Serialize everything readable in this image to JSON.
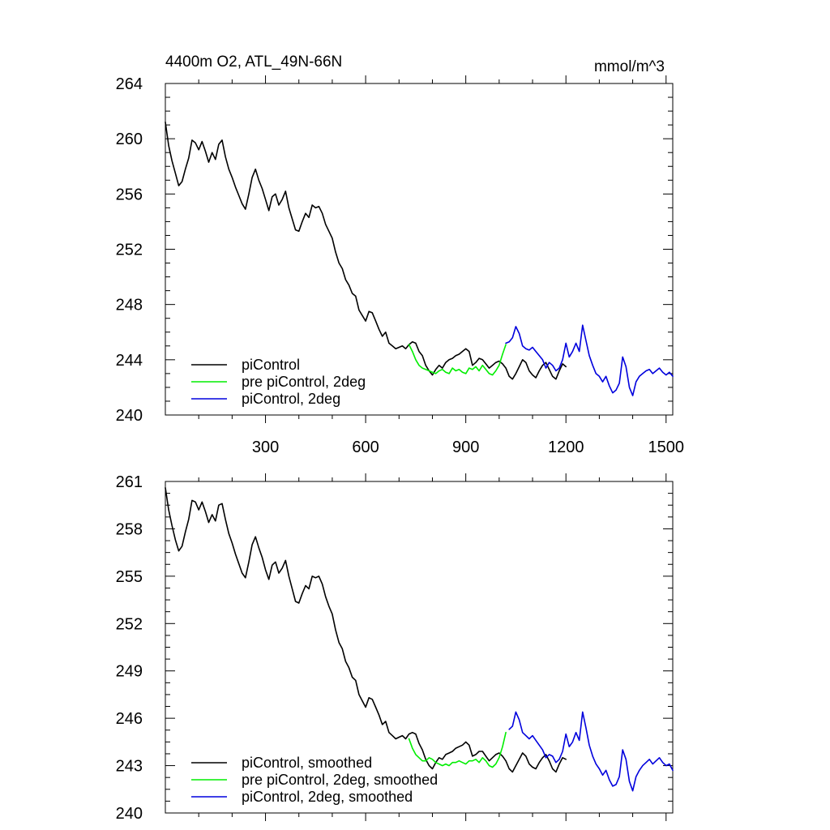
{
  "chart_data": [
    {
      "type": "line",
      "title_left": "4400m O2, ATL_49N-66N",
      "title_right": "mmol/m^3",
      "xlabel": "",
      "ylabel": "",
      "xlim": [
        0,
        1520
      ],
      "ylim": [
        240,
        264
      ],
      "x_ticks": [
        300,
        600,
        900,
        1200,
        1500
      ],
      "y_ticks": [
        240,
        244,
        248,
        252,
        256,
        260,
        264
      ],
      "show_x_tick_labels": true,
      "grid": false,
      "legend_position": "bottom-left",
      "series": [
        {
          "name": "piControl",
          "color": "#000000",
          "x": [
            0,
            10,
            20,
            30,
            40,
            50,
            60,
            70,
            80,
            90,
            100,
            110,
            120,
            130,
            140,
            150,
            160,
            170,
            180,
            190,
            200,
            210,
            220,
            230,
            240,
            250,
            260,
            270,
            280,
            290,
            300,
            310,
            320,
            330,
            340,
            350,
            360,
            370,
            380,
            390,
            400,
            410,
            420,
            430,
            440,
            450,
            460,
            470,
            480,
            490,
            500,
            510,
            520,
            530,
            540,
            550,
            560,
            570,
            580,
            590,
            600,
            610,
            620,
            630,
            640,
            650,
            660,
            670,
            680,
            690,
            700,
            710,
            720,
            730,
            740,
            750,
            760,
            770,
            780,
            790,
            800,
            810,
            820,
            830,
            840,
            850,
            860,
            870,
            880,
            890,
            900,
            910,
            920,
            930,
            940,
            950,
            960,
            970,
            980,
            990,
            1000,
            1010,
            1020,
            1030,
            1040,
            1050,
            1060,
            1070,
            1080,
            1090,
            1100,
            1110,
            1120,
            1130,
            1140,
            1150,
            1160,
            1170,
            1180,
            1190,
            1200
          ],
          "y": [
            261.2,
            259.5,
            258.4,
            257.5,
            256.6,
            256.9,
            257.8,
            258.6,
            259.9,
            259.7,
            259.2,
            259.8,
            259.1,
            258.3,
            259.0,
            258.5,
            259.6,
            259.9,
            258.7,
            257.8,
            257.2,
            256.5,
            255.9,
            255.3,
            254.9,
            256.0,
            257.2,
            257.8,
            257.0,
            256.4,
            255.6,
            254.8,
            255.8,
            256.0,
            255.2,
            255.6,
            256.2,
            255.0,
            254.2,
            253.4,
            253.3,
            254.0,
            254.6,
            254.3,
            255.2,
            255.0,
            255.1,
            254.6,
            253.8,
            253.3,
            252.8,
            251.8,
            251.0,
            250.6,
            249.8,
            249.4,
            248.8,
            248.6,
            247.6,
            247.2,
            246.8,
            247.5,
            247.4,
            246.8,
            246.2,
            245.7,
            246.0,
            245.2,
            245.0,
            244.8,
            244.9,
            245.0,
            244.8,
            245.1,
            245.3,
            245.2,
            244.6,
            244.3,
            243.6,
            243.2,
            242.9,
            243.3,
            243.6,
            243.4,
            243.8,
            244.0,
            244.1,
            244.3,
            244.4,
            244.6,
            244.8,
            244.6,
            243.6,
            243.8,
            244.1,
            244.0,
            243.7,
            243.4,
            243.6,
            243.8,
            243.9,
            243.7,
            243.4,
            242.8,
            242.6,
            243.0,
            243.5,
            244.0,
            243.8,
            243.2,
            242.9,
            242.7,
            243.2,
            243.6,
            243.8,
            243.3,
            242.8,
            242.6,
            243.2,
            243.7,
            243.5
          ]
        },
        {
          "name": "pre piControl, 2deg",
          "color": "#00ee00",
          "x": [
            730,
            740,
            750,
            760,
            770,
            780,
            790,
            800,
            810,
            820,
            830,
            840,
            850,
            860,
            870,
            880,
            890,
            900,
            910,
            920,
            930,
            940,
            950,
            960,
            970,
            980,
            990,
            1000,
            1010,
            1020
          ],
          "y": [
            245.1,
            244.6,
            244.0,
            243.6,
            243.4,
            243.3,
            243.2,
            243.1,
            243.0,
            243.2,
            243.3,
            243.1,
            243.0,
            243.4,
            243.2,
            243.3,
            243.1,
            243.0,
            243.4,
            243.3,
            243.5,
            243.2,
            243.6,
            243.3,
            243.0,
            242.9,
            243.2,
            243.6,
            244.4,
            245.1
          ]
        },
        {
          "name": "piControl, 2deg",
          "color": "#0000dd",
          "x": [
            1020,
            1030,
            1040,
            1050,
            1060,
            1070,
            1080,
            1090,
            1100,
            1110,
            1120,
            1130,
            1140,
            1150,
            1160,
            1170,
            1180,
            1190,
            1200,
            1210,
            1220,
            1230,
            1240,
            1250,
            1260,
            1270,
            1280,
            1290,
            1300,
            1310,
            1320,
            1330,
            1340,
            1350,
            1360,
            1370,
            1380,
            1390,
            1400,
            1410,
            1420,
            1430,
            1440,
            1450,
            1460,
            1470,
            1480,
            1490,
            1500,
            1510,
            1520
          ],
          "y": [
            245.2,
            245.3,
            245.6,
            246.4,
            245.9,
            245.0,
            244.8,
            244.7,
            244.9,
            244.6,
            244.3,
            244.0,
            243.4,
            243.8,
            243.6,
            243.2,
            243.4,
            244.0,
            245.2,
            244.2,
            244.6,
            245.2,
            244.6,
            246.5,
            245.4,
            244.3,
            243.6,
            243.0,
            242.8,
            242.4,
            242.8,
            242.1,
            241.6,
            241.8,
            242.3,
            244.2,
            243.5,
            242.0,
            241.4,
            242.4,
            242.8,
            243.0,
            243.2,
            243.3,
            243.0,
            243.2,
            243.4,
            243.1,
            242.9,
            243.1,
            242.8
          ]
        }
      ]
    },
    {
      "type": "line",
      "xlabel": "",
      "ylabel": "",
      "xlim": [
        0,
        1520
      ],
      "ylim": [
        240,
        261
      ],
      "x_ticks": [
        300,
        600,
        900,
        1200,
        1500
      ],
      "y_ticks": [
        240,
        243,
        246,
        249,
        252,
        255,
        258,
        261
      ],
      "show_x_tick_labels": false,
      "grid": false,
      "legend_position": "bottom-left",
      "series": [
        {
          "name": "piControl, smoothed",
          "color": "#000000",
          "x": [
            0,
            10,
            20,
            30,
            40,
            50,
            60,
            70,
            80,
            90,
            100,
            110,
            120,
            130,
            140,
            150,
            160,
            170,
            180,
            190,
            200,
            210,
            220,
            230,
            240,
            250,
            260,
            270,
            280,
            290,
            300,
            310,
            320,
            330,
            340,
            350,
            360,
            370,
            380,
            390,
            400,
            410,
            420,
            430,
            440,
            450,
            460,
            470,
            480,
            490,
            500,
            510,
            520,
            530,
            540,
            550,
            560,
            570,
            580,
            590,
            600,
            610,
            620,
            630,
            640,
            650,
            660,
            670,
            680,
            690,
            700,
            710,
            720,
            730,
            740,
            750,
            760,
            770,
            780,
            790,
            800,
            810,
            820,
            830,
            840,
            850,
            860,
            870,
            880,
            890,
            900,
            910,
            920,
            930,
            940,
            950,
            960,
            970,
            980,
            990,
            1000,
            1010,
            1020,
            1030,
            1040,
            1050,
            1060,
            1070,
            1080,
            1090,
            1100,
            1110,
            1120,
            1130,
            1140,
            1150,
            1160,
            1170,
            1180,
            1190,
            1200
          ],
          "y": [
            260.6,
            259.2,
            258.2,
            257.3,
            256.6,
            256.9,
            257.8,
            258.6,
            259.8,
            259.7,
            259.2,
            259.7,
            259.1,
            258.4,
            258.9,
            258.5,
            259.5,
            259.6,
            258.6,
            257.7,
            257.1,
            256.4,
            255.8,
            255.2,
            254.9,
            255.9,
            257.0,
            257.5,
            256.8,
            256.2,
            255.4,
            254.8,
            255.7,
            255.9,
            255.2,
            255.5,
            256.0,
            255.0,
            254.2,
            253.4,
            253.3,
            253.9,
            254.4,
            254.2,
            255.0,
            254.9,
            255.0,
            254.5,
            253.7,
            253.1,
            252.6,
            251.6,
            250.8,
            250.4,
            249.6,
            249.2,
            248.6,
            248.4,
            247.5,
            247.1,
            246.7,
            247.3,
            247.2,
            246.7,
            246.2,
            245.6,
            245.8,
            245.1,
            244.9,
            244.7,
            244.8,
            244.9,
            244.7,
            245.0,
            245.1,
            245.0,
            244.4,
            244.0,
            243.4,
            243.0,
            242.8,
            243.2,
            243.5,
            243.4,
            243.7,
            243.8,
            243.9,
            244.1,
            244.2,
            244.3,
            244.5,
            244.3,
            243.6,
            243.7,
            243.9,
            243.9,
            243.6,
            243.3,
            243.5,
            243.7,
            243.8,
            243.6,
            243.3,
            242.8,
            242.6,
            243.0,
            243.4,
            243.8,
            243.6,
            243.1,
            242.9,
            242.8,
            243.2,
            243.5,
            243.7,
            243.3,
            242.8,
            242.6,
            243.1,
            243.5,
            243.4
          ]
        },
        {
          "name": "pre piControl, 2deg, smoothed",
          "color": "#00ee00",
          "x": [
            730,
            740,
            750,
            760,
            770,
            780,
            790,
            800,
            810,
            820,
            830,
            840,
            850,
            860,
            870,
            880,
            890,
            900,
            910,
            920,
            930,
            940,
            950,
            960,
            970,
            980,
            990,
            1000,
            1010,
            1020
          ],
          "y": [
            244.7,
            244.1,
            243.7,
            243.5,
            243.3,
            243.3,
            243.5,
            243.4,
            243.2,
            243.1,
            243.0,
            243.1,
            243.0,
            243.2,
            243.2,
            243.3,
            243.2,
            243.1,
            243.3,
            243.3,
            243.4,
            243.2,
            243.5,
            243.3,
            243.0,
            242.9,
            243.1,
            243.5,
            244.2,
            245.1
          ]
        },
        {
          "name": "piControl, 2deg, smoothed",
          "color": "#0000dd",
          "x": [
            1030,
            1040,
            1050,
            1060,
            1070,
            1080,
            1090,
            1100,
            1110,
            1120,
            1130,
            1140,
            1150,
            1160,
            1170,
            1180,
            1190,
            1200,
            1210,
            1220,
            1230,
            1240,
            1250,
            1260,
            1270,
            1280,
            1290,
            1300,
            1310,
            1320,
            1330,
            1340,
            1350,
            1360,
            1370,
            1380,
            1390,
            1400,
            1410,
            1420,
            1430,
            1440,
            1450,
            1460,
            1470,
            1480,
            1490,
            1500,
            1510,
            1520
          ],
          "y": [
            245.3,
            245.5,
            246.4,
            245.9,
            245.1,
            244.9,
            244.7,
            244.9,
            244.6,
            244.3,
            244.0,
            243.5,
            243.7,
            243.6,
            243.2,
            243.4,
            243.9,
            245.0,
            244.2,
            244.5,
            245.1,
            244.6,
            246.4,
            245.4,
            244.3,
            243.6,
            243.1,
            242.8,
            242.4,
            242.7,
            242.1,
            241.7,
            241.8,
            242.3,
            244.0,
            243.4,
            242.0,
            241.4,
            242.3,
            242.7,
            243.0,
            243.2,
            243.4,
            243.1,
            243.3,
            243.5,
            243.2,
            243.0,
            243.1,
            242.7
          ]
        }
      ]
    }
  ]
}
